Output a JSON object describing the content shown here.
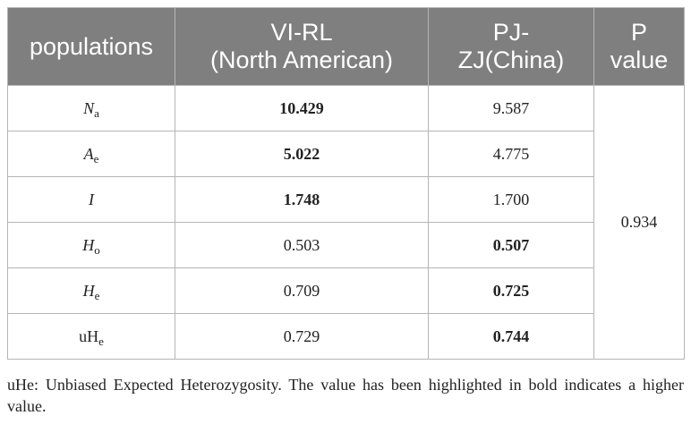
{
  "table": {
    "headers": {
      "populations": "populations",
      "vi_rl_line1": "VI-RL",
      "vi_rl_line2": "(North American)",
      "pj_zj_line1": "PJ-",
      "pj_zj_line2": "ZJ(China)",
      "p_line1": "P",
      "p_line2": "value"
    },
    "rows": [
      {
        "symbol": "N",
        "sub": "a",
        "italic": true,
        "vi_rl": "10.429",
        "pj_zj": "9.587"
      },
      {
        "symbol": "A",
        "sub": "e",
        "italic": true,
        "vi_rl": "5.022",
        "pj_zj": "4.775"
      },
      {
        "symbol": "I",
        "sub": "",
        "italic": true,
        "vi_rl": "1.748",
        "pj_zj": "1.700"
      },
      {
        "symbol": "H",
        "sub": "o",
        "italic": true,
        "vi_rl": "0.503",
        "pj_zj": "0.507"
      },
      {
        "symbol": "H",
        "sub": "e",
        "italic": true,
        "vi_rl": "0.709",
        "pj_zj": "0.725"
      },
      {
        "symbol": "uH",
        "sub": "e",
        "italic": false,
        "vi_rl": "0.729",
        "pj_zj": "0.744"
      }
    ],
    "p_value": "0.934"
  },
  "footnote": "uHe: Unbiased Expected Heterozygosity. The value has been highlighted in bold indicates a higher value.",
  "colors": {
    "header_background": "#7f7f7f",
    "header_text": "#ffffff",
    "grid": "#b5b5b5"
  }
}
